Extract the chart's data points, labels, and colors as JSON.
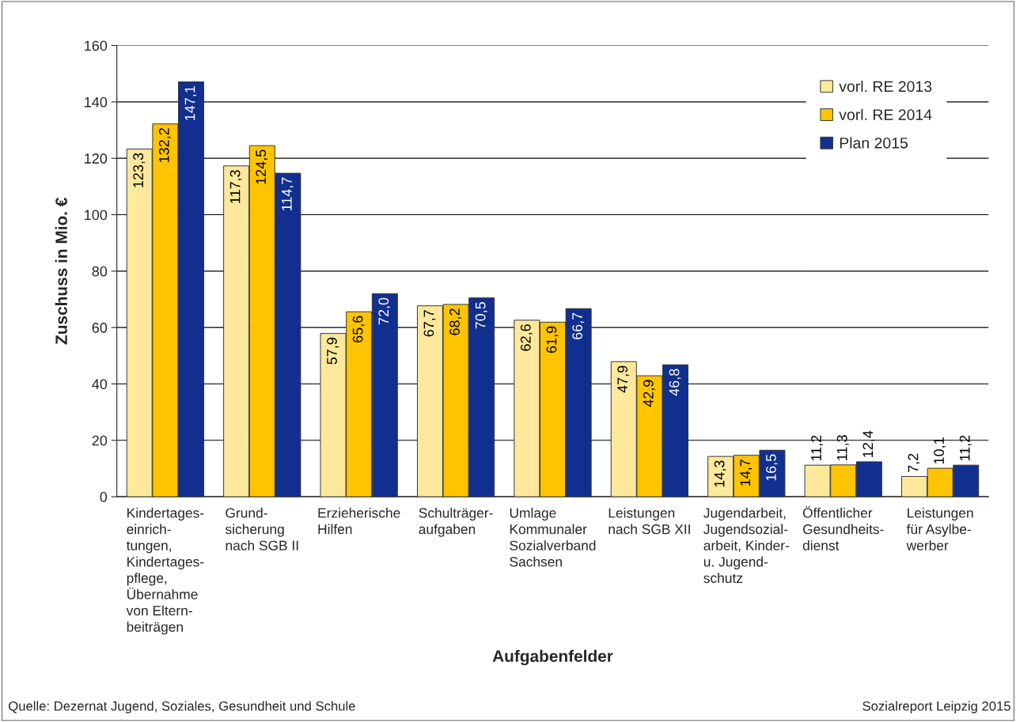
{
  "chart_data": {
    "type": "bar",
    "xlabel": "Aufgabenfelder",
    "ylabel": "Zuschuss in Mio. €",
    "categories": [
      "Kindertages-\neinrich-\ntungen,\nKindertages-\npflege,\nÜbernahme\nvon Eltern-\nbeiträgen",
      "Grund-\nsicherung\nnach SGB II",
      "Erzieherische\nHilfen",
      "Schulträger-\naufgaben",
      "Umlage\nKommunaler\nSozialverband\nSachsen",
      "Leistungen\nnach SGB XII",
      "Jugendarbeit,\nJugendsozial-\narbeit, Kinder-\nu. Jugend-\nschutz",
      "Öffentlicher\nGesundheits-\ndienst",
      "Leistungen\nfür Asylbe-\nwerber"
    ],
    "series": [
      {
        "name": "vorl. RE 2013",
        "color": "#fee89c",
        "values": [
          123.3,
          117.3,
          57.9,
          67.7,
          62.6,
          47.9,
          14.3,
          11.2,
          7.2
        ],
        "value_labels": [
          "123,3",
          "117,3",
          "57,9",
          "67,7",
          "62,6",
          "47,9",
          "14,3",
          "11,2",
          "7,2"
        ]
      },
      {
        "name": "vorl. RE 2014",
        "color": "#ffc400",
        "values": [
          132.2,
          124.5,
          65.6,
          68.2,
          61.9,
          42.9,
          14.7,
          11.3,
          10.1
        ],
        "value_labels": [
          "132,2",
          "124,5",
          "65,6",
          "68,2",
          "61,9",
          "42,9",
          "14,7",
          "11,3",
          "10,1"
        ]
      },
      {
        "name": "Plan 2015",
        "color": "#112f8f",
        "values": [
          147.1,
          114.7,
          72.0,
          70.5,
          66.7,
          46.8,
          16.5,
          12.4,
          11.2
        ],
        "value_labels": [
          "147,1",
          "114,7",
          "72,0",
          "70,5",
          "66,7",
          "46,8",
          "16,5",
          "12,4",
          "11,2"
        ]
      }
    ],
    "ylim": [
      0,
      160
    ],
    "yticks": [
      0,
      20,
      40,
      60,
      80,
      100,
      120,
      140,
      160
    ],
    "grid": "y",
    "legend": "top right",
    "annotations": [
      "Quelle: Dezernat Jugend, Soziales, Gesundheit und Schule",
      "Sozialreport Leipzig 2015"
    ]
  }
}
